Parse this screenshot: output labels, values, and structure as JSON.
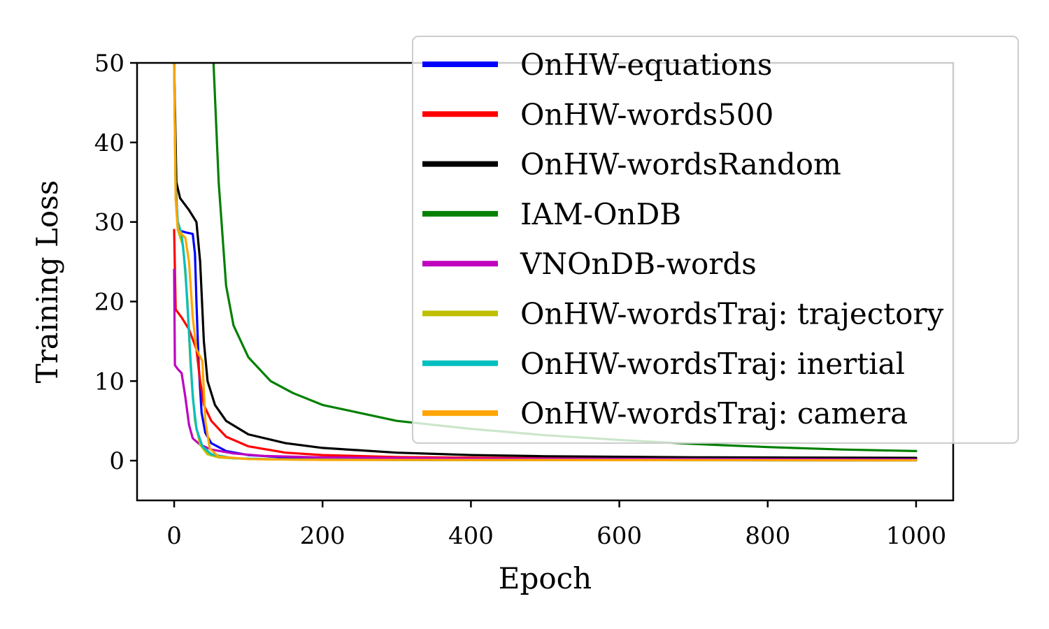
{
  "chart_data": {
    "type": "line",
    "title": "",
    "xlabel": "Epoch",
    "ylabel": "Training Loss",
    "xlim": [
      -50,
      1050
    ],
    "ylim": [
      -5,
      50
    ],
    "xticks": [
      0,
      200,
      400,
      600,
      800,
      1000
    ],
    "yticks": [
      0,
      10,
      20,
      30,
      40,
      50
    ],
    "grid": false,
    "legend_position": "top-right",
    "series": [
      {
        "name": "OnHW-equations",
        "color": "#0000ff",
        "points": [
          [
            0,
            50
          ],
          [
            2,
            35
          ],
          [
            5,
            29
          ],
          [
            15,
            28.7
          ],
          [
            25,
            28.5
          ],
          [
            28,
            26
          ],
          [
            30,
            20
          ],
          [
            33,
            12
          ],
          [
            37,
            6
          ],
          [
            42,
            3.5
          ],
          [
            50,
            2.2
          ],
          [
            70,
            1.2
          ],
          [
            100,
            0.7
          ],
          [
            150,
            0.4
          ],
          [
            200,
            0.25
          ],
          [
            300,
            0.15
          ],
          [
            500,
            0.08
          ],
          [
            1000,
            0.03
          ]
        ]
      },
      {
        "name": "OnHW-words500",
        "color": "#ff0000",
        "points": [
          [
            0,
            29
          ],
          [
            2,
            19
          ],
          [
            10,
            18
          ],
          [
            20,
            16.5
          ],
          [
            30,
            14
          ],
          [
            35,
            10
          ],
          [
            40,
            7
          ],
          [
            50,
            5
          ],
          [
            70,
            3
          ],
          [
            100,
            1.8
          ],
          [
            150,
            1.0
          ],
          [
            200,
            0.7
          ],
          [
            300,
            0.45
          ],
          [
            500,
            0.3
          ],
          [
            700,
            0.2
          ],
          [
            1000,
            0.15
          ]
        ]
      },
      {
        "name": "OnHW-wordsRandom",
        "color": "#000000",
        "points": [
          [
            0,
            50
          ],
          [
            3,
            35
          ],
          [
            8,
            33
          ],
          [
            20,
            31.5
          ],
          [
            30,
            30
          ],
          [
            35,
            25
          ],
          [
            40,
            15
          ],
          [
            45,
            10
          ],
          [
            55,
            7
          ],
          [
            70,
            5
          ],
          [
            100,
            3.3
          ],
          [
            150,
            2.2
          ],
          [
            200,
            1.6
          ],
          [
            300,
            1.0
          ],
          [
            400,
            0.7
          ],
          [
            500,
            0.55
          ],
          [
            700,
            0.42
          ],
          [
            1000,
            0.35
          ]
        ]
      },
      {
        "name": "IAM-OnDB",
        "color": "#008000",
        "points": [
          [
            53,
            50
          ],
          [
            60,
            35
          ],
          [
            70,
            22
          ],
          [
            80,
            17
          ],
          [
            100,
            13
          ],
          [
            130,
            10
          ],
          [
            160,
            8.5
          ],
          [
            200,
            7.0
          ],
          [
            250,
            6.0
          ],
          [
            300,
            5.0
          ],
          [
            400,
            4.0
          ],
          [
            500,
            3.2
          ],
          [
            600,
            2.6
          ],
          [
            700,
            2.1
          ],
          [
            800,
            1.7
          ],
          [
            900,
            1.4
          ],
          [
            1000,
            1.2
          ]
        ]
      },
      {
        "name": "VNOnDB-words",
        "color": "#bf00bf",
        "points": [
          [
            0,
            24
          ],
          [
            1,
            12
          ],
          [
            5,
            11.5
          ],
          [
            10,
            11
          ],
          [
            15,
            8
          ],
          [
            20,
            4.5
          ],
          [
            25,
            2.8
          ],
          [
            35,
            2.0
          ],
          [
            50,
            1.4
          ],
          [
            80,
            0.9
          ],
          [
            120,
            0.6
          ],
          [
            200,
            0.4
          ],
          [
            400,
            0.25
          ],
          [
            1000,
            0.15
          ]
        ]
      },
      {
        "name": "OnHW-wordsTraj: trajectory",
        "color": "#bfbf00",
        "points": [
          [
            0,
            50
          ],
          [
            2,
            33
          ],
          [
            5,
            29
          ],
          [
            12,
            27
          ],
          [
            18,
            20
          ],
          [
            22,
            12
          ],
          [
            28,
            5
          ],
          [
            35,
            2.0
          ],
          [
            45,
            0.8
          ],
          [
            60,
            0.4
          ],
          [
            100,
            0.2
          ],
          [
            200,
            0.1
          ],
          [
            1000,
            0.03
          ]
        ]
      },
      {
        "name": "OnHW-wordsTraj: inertial",
        "color": "#00bfbf",
        "points": [
          [
            0,
            50
          ],
          [
            2,
            34
          ],
          [
            5,
            30
          ],
          [
            10,
            28.5
          ],
          [
            15,
            24
          ],
          [
            20,
            16
          ],
          [
            25,
            8
          ],
          [
            30,
            4
          ],
          [
            38,
            1.8
          ],
          [
            50,
            0.8
          ],
          [
            80,
            0.3
          ],
          [
            150,
            0.15
          ],
          [
            300,
            0.08
          ],
          [
            1000,
            0.03
          ]
        ]
      },
      {
        "name": "OnHW-wordsTraj: camera",
        "color": "#ffa500",
        "points": [
          [
            0,
            50
          ],
          [
            2,
            33
          ],
          [
            5,
            29
          ],
          [
            15,
            28
          ],
          [
            20,
            25
          ],
          [
            25,
            18
          ],
          [
            30,
            14
          ],
          [
            38,
            12.5
          ],
          [
            42,
            5
          ],
          [
            48,
            1.5
          ],
          [
            60,
            0.5
          ],
          [
            100,
            0.2
          ],
          [
            200,
            0.1
          ],
          [
            1000,
            0.03
          ]
        ]
      }
    ]
  }
}
